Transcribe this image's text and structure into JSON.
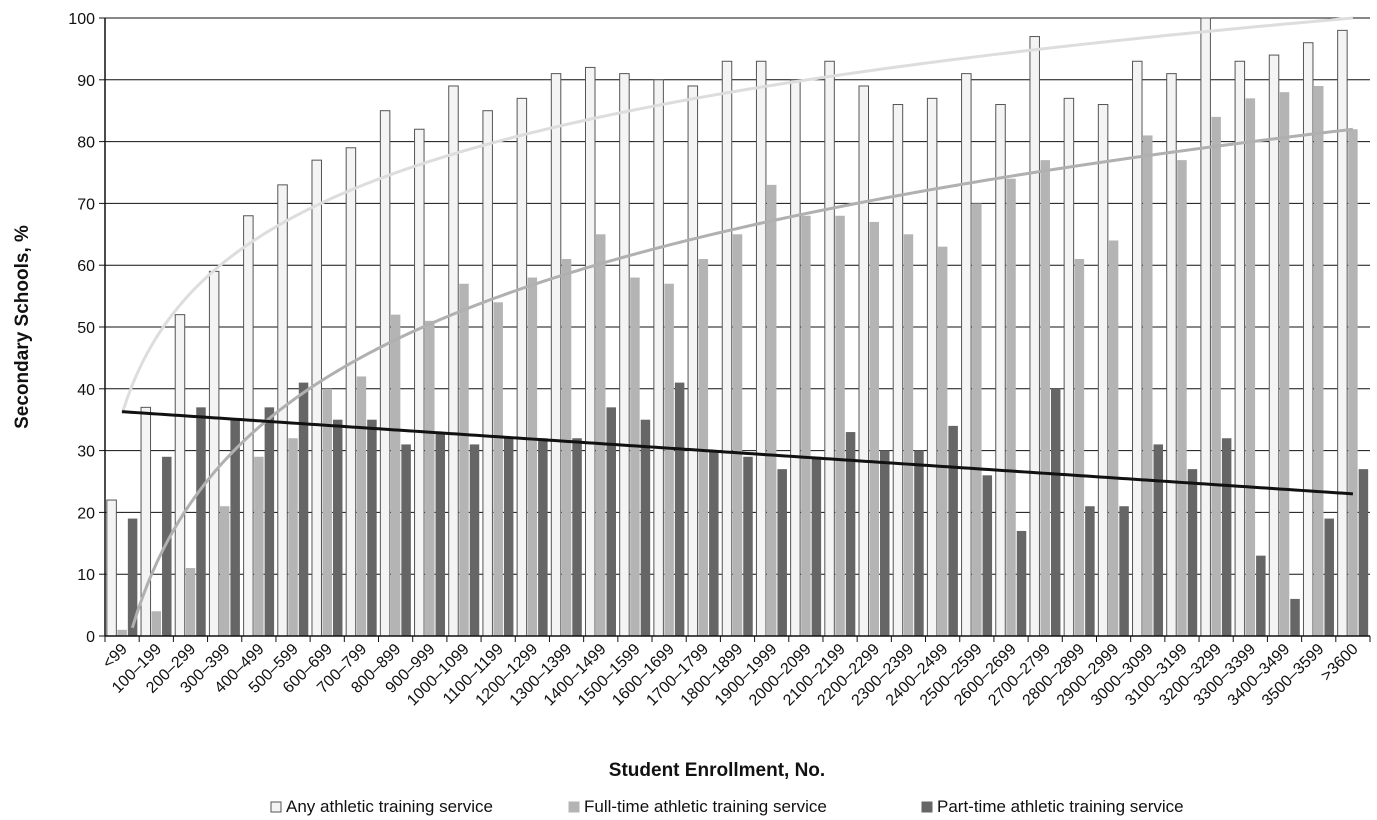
{
  "chart_data": {
    "type": "bar",
    "title": "",
    "xlabel": "Student Enrollment, No.",
    "ylabel": "Secondary Schools, %",
    "ylim": [
      0,
      100
    ],
    "yticks": [
      0,
      10,
      20,
      30,
      40,
      50,
      60,
      70,
      80,
      90,
      100
    ],
    "grid": true,
    "legend_position": "bottom",
    "categories": [
      "<99",
      "100–199",
      "200–299",
      "300–399",
      "400–499",
      "500–599",
      "600–699",
      "700–799",
      "800–899",
      "900–999",
      "1000–1099",
      "1100–1199",
      "1200–1299",
      "1300–1399",
      "1400–1499",
      "1500–1599",
      "1600–1699",
      "1700–1799",
      "1800–1899",
      "1900–1999",
      "2000–2099",
      "2100–2199",
      "2200–2299",
      "2300–2399",
      "2400–2499",
      "2500–2599",
      "2600–2699",
      "2700–2799",
      "2800–2899",
      "2900–2999",
      "3000–3099",
      "3100–3199",
      "3200–3299",
      "3300–3399",
      "3400–3499",
      "3500–3599",
      ">3600"
    ],
    "series": [
      {
        "name": "Any athletic training service",
        "color": "#f4f4f4",
        "stroke": "#555555",
        "values": [
          22,
          37,
          52,
          59,
          68,
          73,
          77,
          79,
          85,
          82,
          89,
          85,
          87,
          91,
          92,
          91,
          90,
          89,
          93,
          93,
          90,
          93,
          89,
          86,
          87,
          91,
          86,
          97,
          87,
          86,
          93,
          91,
          100,
          93,
          94,
          96,
          98
        ]
      },
      {
        "name": "Full-time athletic training service",
        "color": "#b4b4b4",
        "stroke": "#b4b4b4",
        "values": [
          1,
          4,
          11,
          21,
          29,
          32,
          40,
          42,
          52,
          51,
          57,
          54,
          58,
          61,
          65,
          58,
          57,
          61,
          65,
          73,
          68,
          68,
          67,
          65,
          63,
          70,
          74,
          77,
          61,
          64,
          81,
          77,
          84,
          87,
          88,
          89,
          82
        ]
      },
      {
        "name": "Part-time athletic training service",
        "color": "#666666",
        "stroke": "#666666",
        "values": [
          19,
          29,
          37,
          35,
          37,
          41,
          35,
          35,
          31,
          33,
          31,
          32,
          32,
          32,
          37,
          35,
          41,
          30,
          29,
          27,
          29,
          33,
          30,
          30,
          34,
          26,
          17,
          40,
          21,
          21,
          31,
          27,
          32,
          13,
          6,
          19,
          27
        ]
      }
    ],
    "trendlines": [
      {
        "series": "Any athletic training service",
        "type": "logarithmic",
        "color": "#dddddd",
        "start": 36,
        "end": 100
      },
      {
        "series": "Full-time athletic training service",
        "type": "logarithmic",
        "color": "#b0b0b0",
        "start": -5,
        "end": 82
      },
      {
        "series": "Part-time athletic training service",
        "type": "linear",
        "color": "#111111",
        "start": 36.3,
        "end": 23
      }
    ]
  }
}
